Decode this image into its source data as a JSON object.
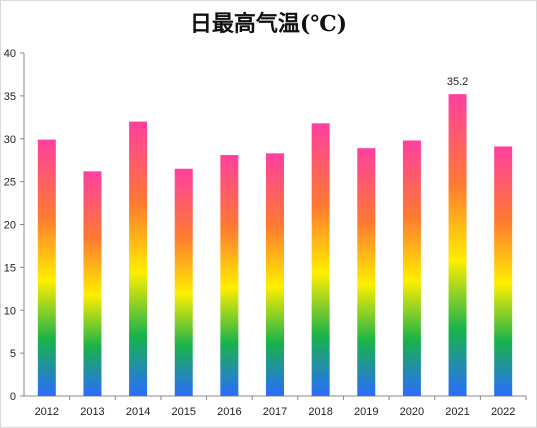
{
  "chart_data": {
    "type": "bar",
    "title": "日最高气温(℃)",
    "categories": [
      "2012",
      "2013",
      "2014",
      "2015",
      "2016",
      "2017",
      "2018",
      "2019",
      "2020",
      "2021",
      "2022"
    ],
    "values": [
      29.9,
      26.2,
      32.0,
      26.5,
      28.1,
      28.3,
      31.8,
      28.9,
      29.8,
      35.2,
      29.1
    ],
    "data_labels": [
      {
        "index": 9,
        "text": "35.2"
      }
    ],
    "ylim": [
      0,
      40
    ],
    "yticks": [
      "0",
      "5",
      "10",
      "15",
      "20",
      "25",
      "30",
      "35",
      "40"
    ],
    "xlabel": "",
    "ylabel": "",
    "grid": false,
    "legend": "none",
    "colors": {
      "gradient_top": "#ff3fa0",
      "gradient_upper": "#ff7a30",
      "gradient_mid": "#ffee00",
      "gradient_low": "#19b34a",
      "gradient_bottom": "#2a6cff",
      "axis": "#888888"
    }
  }
}
